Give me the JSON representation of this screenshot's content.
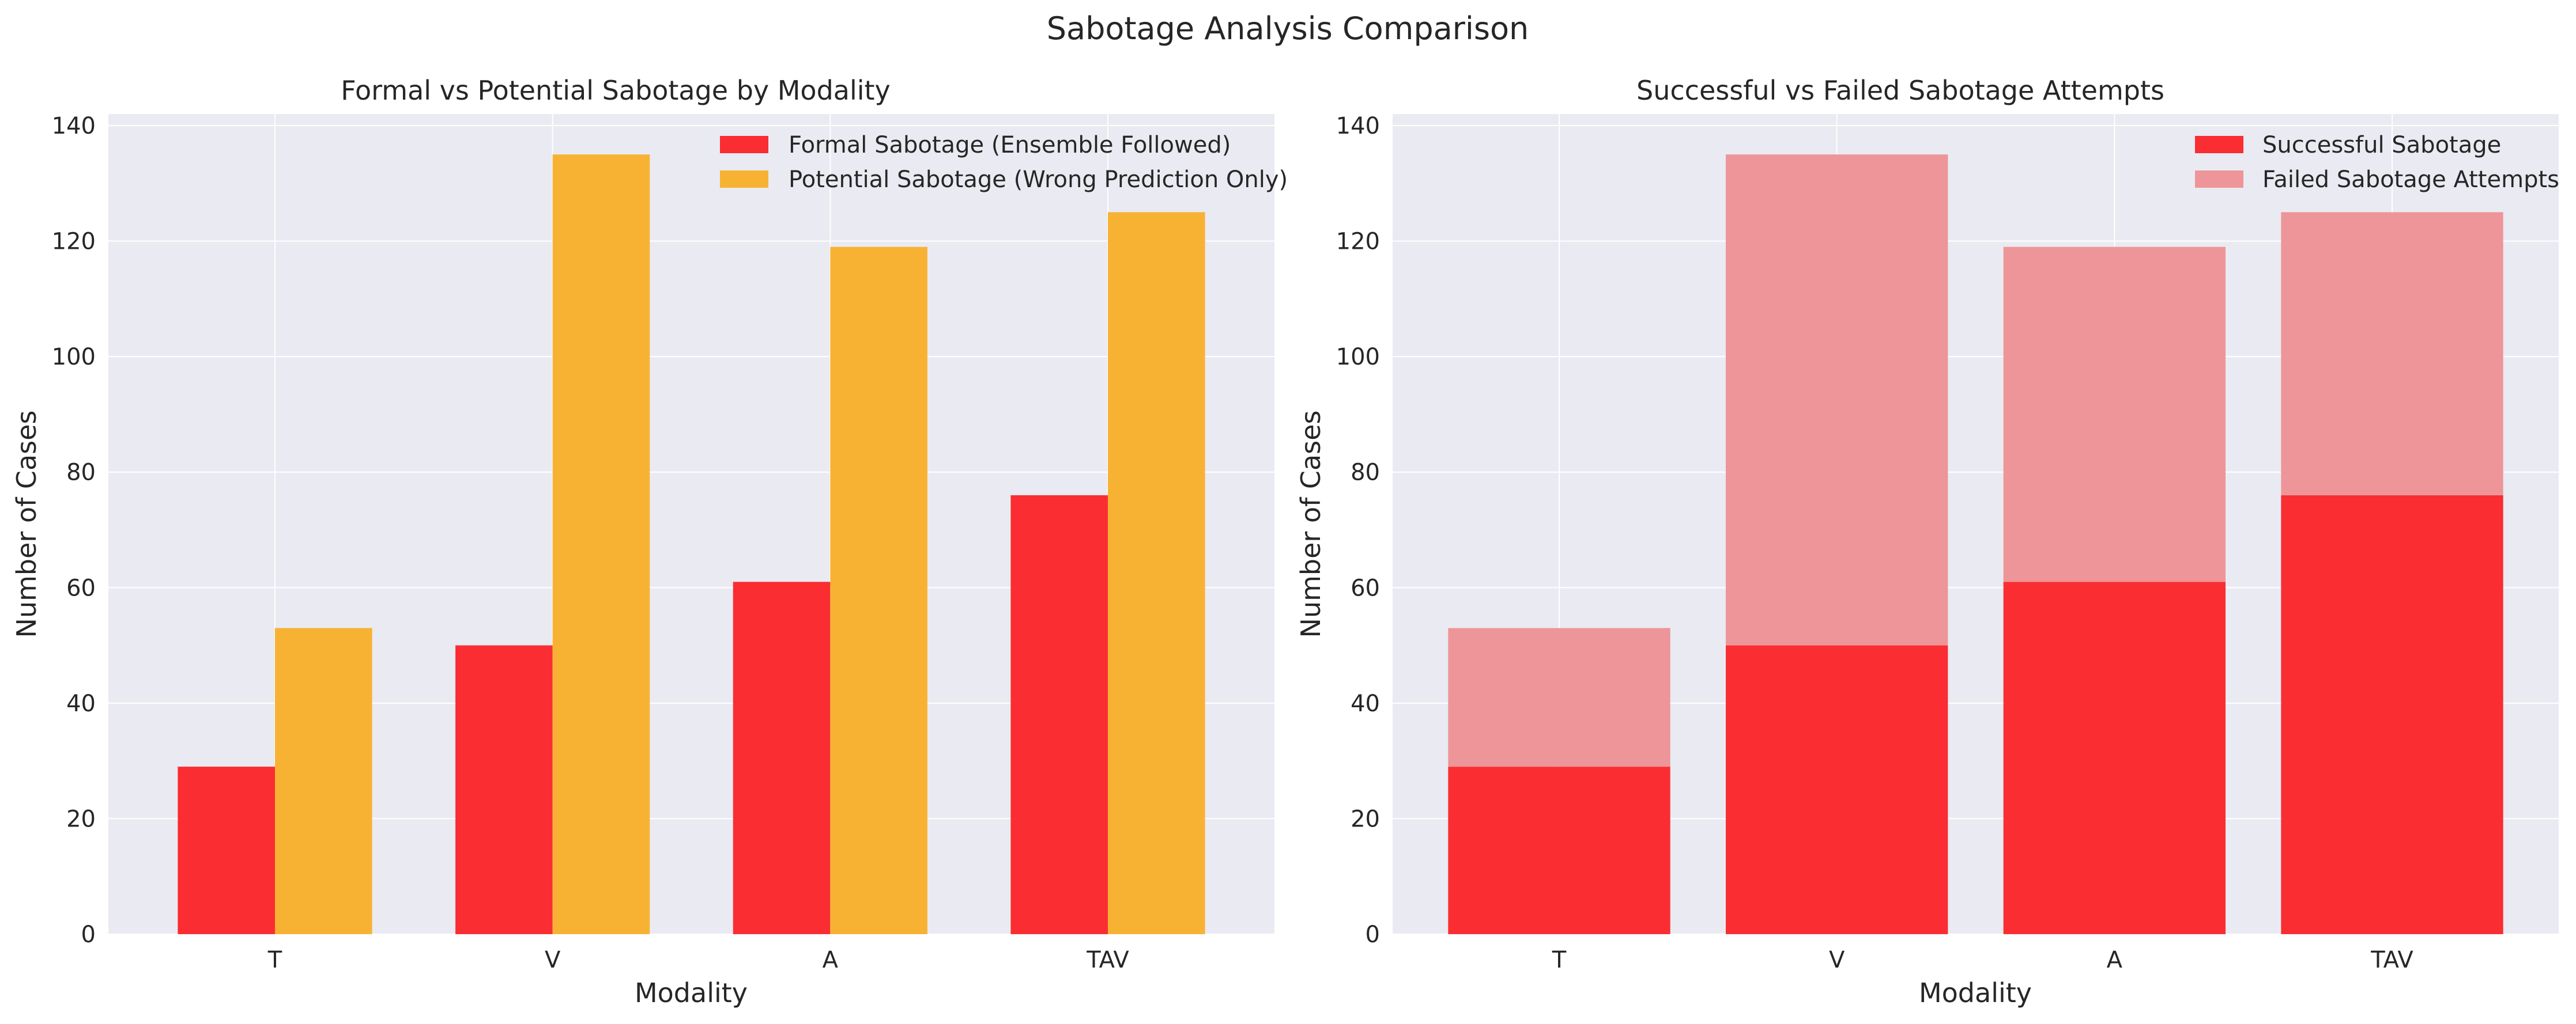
{
  "figure": {
    "suptitle": "Sabotage Analysis Comparison"
  },
  "colors": {
    "formal": "#fa2d32",
    "potential": "#f8b233",
    "successful": "#fa2d32",
    "failed": "#ed9598",
    "axes_bg": "#eaeaf2",
    "grid": "#ffffff"
  },
  "chart_data": [
    {
      "type": "bar",
      "title": "Formal vs Potential Sabotage by Modality",
      "xlabel": "Modality",
      "ylabel": "Number of Cases",
      "categories": [
        "T",
        "V",
        "A",
        "TAV"
      ],
      "series": [
        {
          "name": "Formal Sabotage (Ensemble Followed)",
          "values": [
            29,
            50,
            61,
            76
          ]
        },
        {
          "name": "Potential Sabotage (Wrong Prediction Only)",
          "values": [
            53,
            135,
            119,
            125
          ]
        }
      ],
      "ylim": [
        0,
        142
      ],
      "yticks": [
        0,
        20,
        40,
        60,
        80,
        100,
        120,
        140
      ],
      "grid": true,
      "legend": "top-right"
    },
    {
      "type": "bar",
      "stacked": true,
      "title": "Successful vs Failed Sabotage Attempts",
      "xlabel": "Modality",
      "ylabel": "Number of Cases",
      "categories": [
        "T",
        "V",
        "A",
        "TAV"
      ],
      "series": [
        {
          "name": "Successful Sabotage",
          "values": [
            29,
            50,
            61,
            76
          ]
        },
        {
          "name": "Failed Sabotage Attempts",
          "values": [
            24,
            85,
            58,
            49
          ]
        }
      ],
      "ylim": [
        0,
        142
      ],
      "yticks": [
        0,
        20,
        40,
        60,
        80,
        100,
        120,
        140
      ],
      "grid": true,
      "legend": "top-right"
    }
  ]
}
